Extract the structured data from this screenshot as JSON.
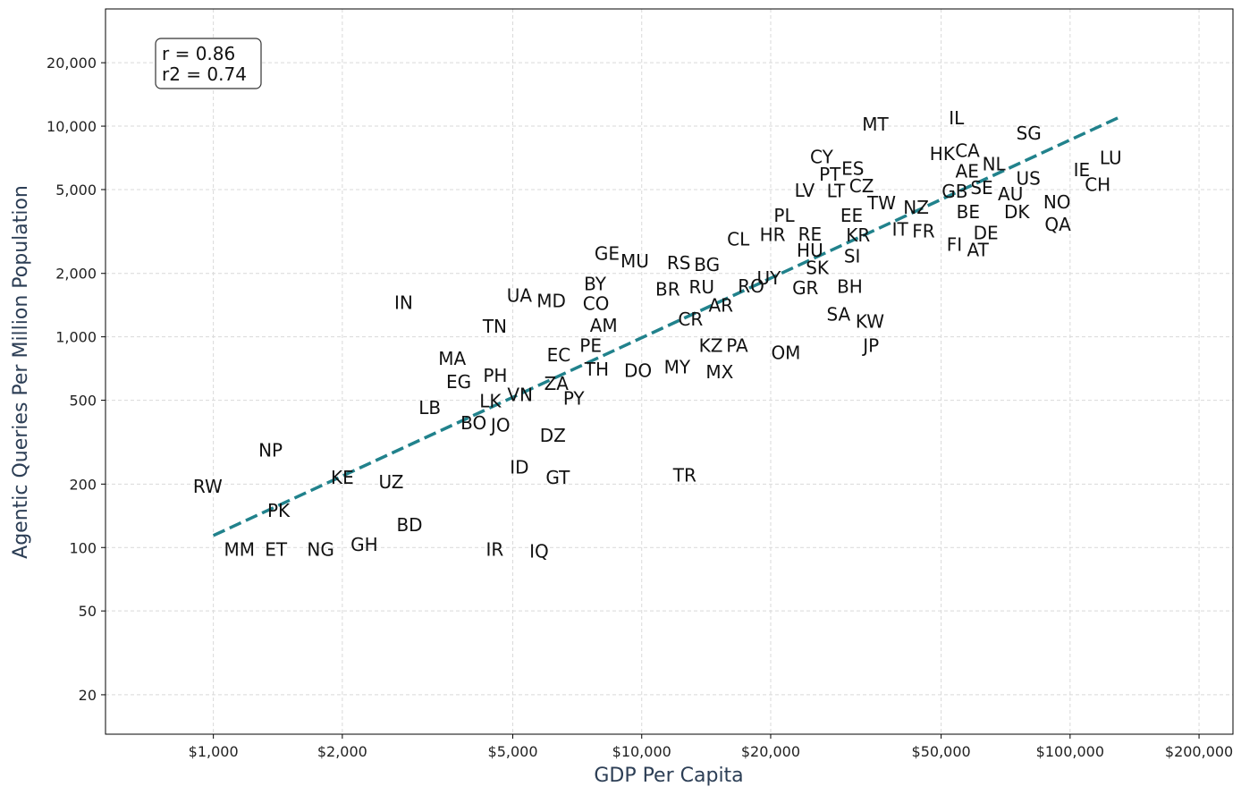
{
  "chart_data": {
    "type": "scatter",
    "xlabel": "GDP Per Capita",
    "ylabel": "Agentic Queries Per Million Population",
    "x_scale": "log",
    "y_scale": "log",
    "xlim": [
      560,
      240000
    ],
    "ylim": [
      13,
      36000
    ],
    "grid": true,
    "annotation": {
      "lines": [
        "r = 0.86",
        "r2 = 0.74"
      ],
      "placement": "top-left"
    },
    "x_ticks": [
      {
        "value": 1000,
        "label": "$1,000"
      },
      {
        "value": 2000,
        "label": "$2,000"
      },
      {
        "value": 5000,
        "label": "$5,000"
      },
      {
        "value": 10000,
        "label": "$10,000"
      },
      {
        "value": 20000,
        "label": "$20,000"
      },
      {
        "value": 50000,
        "label": "$50,000"
      },
      {
        "value": 100000,
        "label": "$100,000"
      },
      {
        "value": 200000,
        "label": "$200,000"
      }
    ],
    "y_ticks": [
      {
        "value": 20,
        "label": "20"
      },
      {
        "value": 50,
        "label": "50"
      },
      {
        "value": 100,
        "label": "100"
      },
      {
        "value": 200,
        "label": "200"
      },
      {
        "value": 500,
        "label": "500"
      },
      {
        "value": 1000,
        "label": "1,000"
      },
      {
        "value": 2000,
        "label": "2,000"
      },
      {
        "value": 5000,
        "label": "5,000"
      },
      {
        "value": 10000,
        "label": "10,000"
      },
      {
        "value": 20000,
        "label": "20,000"
      }
    ],
    "trend_line": {
      "color": "#21828c",
      "style": "dashed",
      "x": [
        1000,
        130000
      ],
      "y": [
        114,
        11000
      ]
    },
    "points": [
      {
        "label": "RW",
        "x": 970,
        "y": 195
      },
      {
        "label": "NP",
        "x": 1360,
        "y": 290
      },
      {
        "label": "PK",
        "x": 1420,
        "y": 150
      },
      {
        "label": "MM",
        "x": 1150,
        "y": 98
      },
      {
        "label": "ET",
        "x": 1400,
        "y": 98
      },
      {
        "label": "NG",
        "x": 1780,
        "y": 98
      },
      {
        "label": "GH",
        "x": 2250,
        "y": 103
      },
      {
        "label": "KE",
        "x": 2000,
        "y": 215
      },
      {
        "label": "UZ",
        "x": 2600,
        "y": 205
      },
      {
        "label": "BD",
        "x": 2870,
        "y": 128
      },
      {
        "label": "IN",
        "x": 2780,
        "y": 1450
      },
      {
        "label": "MA",
        "x": 3610,
        "y": 790
      },
      {
        "label": "EG",
        "x": 3740,
        "y": 610
      },
      {
        "label": "LB",
        "x": 3200,
        "y": 460
      },
      {
        "label": "BO",
        "x": 4050,
        "y": 390
      },
      {
        "label": "JO",
        "x": 4680,
        "y": 380
      },
      {
        "label": "LK",
        "x": 4430,
        "y": 495
      },
      {
        "label": "PH",
        "x": 4550,
        "y": 655
      },
      {
        "label": "VN",
        "x": 5200,
        "y": 530
      },
      {
        "label": "TN",
        "x": 4540,
        "y": 1120
      },
      {
        "label": "UA",
        "x": 5180,
        "y": 1570
      },
      {
        "label": "MD",
        "x": 6150,
        "y": 1480
      },
      {
        "label": "DZ",
        "x": 6200,
        "y": 340
      },
      {
        "label": "ID",
        "x": 5180,
        "y": 240
      },
      {
        "label": "GT",
        "x": 6370,
        "y": 215
      },
      {
        "label": "IR",
        "x": 4540,
        "y": 98
      },
      {
        "label": "IQ",
        "x": 5760,
        "y": 96
      },
      {
        "label": "ZA",
        "x": 6320,
        "y": 600
      },
      {
        "label": "PY",
        "x": 6940,
        "y": 510
      },
      {
        "label": "EC",
        "x": 6400,
        "y": 820
      },
      {
        "label": "TH",
        "x": 7850,
        "y": 700
      },
      {
        "label": "PE",
        "x": 7600,
        "y": 910
      },
      {
        "label": "AM",
        "x": 8150,
        "y": 1130
      },
      {
        "label": "CO",
        "x": 7820,
        "y": 1440
      },
      {
        "label": "BY",
        "x": 7780,
        "y": 1780
      },
      {
        "label": "GE",
        "x": 8300,
        "y": 2490
      },
      {
        "label": "MU",
        "x": 9630,
        "y": 2290
      },
      {
        "label": "DO",
        "x": 9800,
        "y": 690
      },
      {
        "label": "MY",
        "x": 12100,
        "y": 720
      },
      {
        "label": "BR",
        "x": 11500,
        "y": 1680
      },
      {
        "label": "RU",
        "x": 13800,
        "y": 1720
      },
      {
        "label": "RS",
        "x": 12200,
        "y": 2240
      },
      {
        "label": "BG",
        "x": 14200,
        "y": 2200
      },
      {
        "label": "CR",
        "x": 13000,
        "y": 1210
      },
      {
        "label": "AR",
        "x": 15300,
        "y": 1410
      },
      {
        "label": "KZ",
        "x": 14500,
        "y": 910
      },
      {
        "label": "PA",
        "x": 16700,
        "y": 910
      },
      {
        "label": "MX",
        "x": 15200,
        "y": 680
      },
      {
        "label": "TR",
        "x": 12600,
        "y": 220
      },
      {
        "label": "RO",
        "x": 18000,
        "y": 1740
      },
      {
        "label": "CL",
        "x": 16800,
        "y": 2900
      },
      {
        "label": "UY",
        "x": 19800,
        "y": 1900
      },
      {
        "label": "OM",
        "x": 21700,
        "y": 840
      },
      {
        "label": "HR",
        "x": 20200,
        "y": 3050
      },
      {
        "label": "PL",
        "x": 21500,
        "y": 3760
      },
      {
        "label": "GR",
        "x": 24100,
        "y": 1710
      },
      {
        "label": "HU",
        "x": 24700,
        "y": 2570
      },
      {
        "label": "SK",
        "x": 25700,
        "y": 2130
      },
      {
        "label": "RE",
        "x": 24700,
        "y": 3060
      },
      {
        "label": "LV",
        "x": 24000,
        "y": 4950
      },
      {
        "label": "CY",
        "x": 26300,
        "y": 7150
      },
      {
        "label": "PT",
        "x": 27500,
        "y": 5910
      },
      {
        "label": "LT",
        "x": 28400,
        "y": 4930
      },
      {
        "label": "ES",
        "x": 31100,
        "y": 6290
      },
      {
        "label": "CZ",
        "x": 32600,
        "y": 5200
      },
      {
        "label": "BH",
        "x": 30600,
        "y": 1730
      },
      {
        "label": "SA",
        "x": 28800,
        "y": 1280
      },
      {
        "label": "KW",
        "x": 34100,
        "y": 1180
      },
      {
        "label": "JP",
        "x": 34300,
        "y": 910
      },
      {
        "label": "MT",
        "x": 35100,
        "y": 10200
      },
      {
        "label": "EE",
        "x": 30900,
        "y": 3760
      },
      {
        "label": "KR",
        "x": 32000,
        "y": 3030
      },
      {
        "label": "SI",
        "x": 31000,
        "y": 2410
      },
      {
        "label": "TW",
        "x": 36300,
        "y": 4320
      },
      {
        "label": "NZ",
        "x": 43700,
        "y": 4120
      },
      {
        "label": "IT",
        "x": 40100,
        "y": 3230
      },
      {
        "label": "FR",
        "x": 45500,
        "y": 3180
      },
      {
        "label": "HK",
        "x": 50300,
        "y": 7400
      },
      {
        "label": "IL",
        "x": 54300,
        "y": 10900
      },
      {
        "label": "CA",
        "x": 57600,
        "y": 7650
      },
      {
        "label": "AE",
        "x": 57500,
        "y": 6120
      },
      {
        "label": "NL",
        "x": 66400,
        "y": 6600
      },
      {
        "label": "GB",
        "x": 53800,
        "y": 4900
      },
      {
        "label": "SE",
        "x": 62200,
        "y": 5090
      },
      {
        "label": "BE",
        "x": 57800,
        "y": 3920
      },
      {
        "label": "FI",
        "x": 53700,
        "y": 2740
      },
      {
        "label": "DE",
        "x": 63600,
        "y": 3110
      },
      {
        "label": "AT",
        "x": 60900,
        "y": 2580
      },
      {
        "label": "AU",
        "x": 72600,
        "y": 4770
      },
      {
        "label": "US",
        "x": 79900,
        "y": 5640
      },
      {
        "label": "DK",
        "x": 75100,
        "y": 3910
      },
      {
        "label": "SG",
        "x": 80100,
        "y": 9260
      },
      {
        "label": "NO",
        "x": 93200,
        "y": 4350
      },
      {
        "label": "QA",
        "x": 93600,
        "y": 3420
      },
      {
        "label": "IE",
        "x": 106500,
        "y": 6190
      },
      {
        "label": "LU",
        "x": 124400,
        "y": 7080
      },
      {
        "label": "CH",
        "x": 116000,
        "y": 5270
      }
    ]
  }
}
